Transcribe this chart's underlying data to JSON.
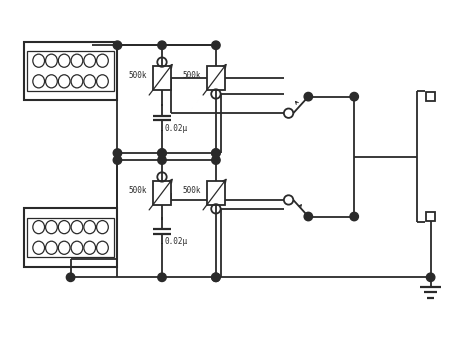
{
  "bg_color": "#ffffff",
  "line_color": "#2a2a2a",
  "lw": 1.3,
  "thin_lw": 0.9,
  "fig_w": 4.74,
  "fig_h": 3.53,
  "dpi": 100,
  "xlim": [
    0,
    10
  ],
  "ylim": [
    0,
    7.5
  ]
}
